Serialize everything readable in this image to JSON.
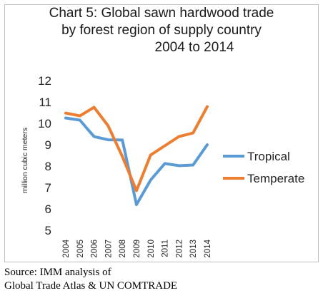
{
  "chart_data": {
    "type": "line",
    "title_lines": [
      "Chart 5: Global sawn hardwood trade",
      "by forest region of supply country",
      "2004 to 2014"
    ],
    "xlabel": "",
    "ylabel": "million cubic meters",
    "categories": [
      "2004",
      "2005",
      "2006",
      "2007",
      "2008",
      "2009",
      "2010",
      "2011",
      "2012",
      "2013",
      "2014"
    ],
    "ylim": [
      5,
      12
    ],
    "yticks": [
      "5",
      "6",
      "7",
      "8",
      "9",
      "10",
      "11",
      "12"
    ],
    "grid": false,
    "legend_position": "right",
    "series": [
      {
        "name": "Tropical",
        "color": "#5b9bd5",
        "values": [
          10.25,
          10.15,
          9.38,
          9.23,
          9.22,
          6.2,
          7.35,
          8.12,
          8.02,
          8.05,
          9.0
        ]
      },
      {
        "name": "Temperate",
        "color": "#ed7d31",
        "values": [
          10.48,
          10.35,
          10.75,
          9.88,
          8.45,
          6.85,
          8.52,
          8.95,
          9.38,
          9.55,
          10.78
        ]
      }
    ]
  },
  "source": {
    "lines": [
      "Source: IMM analysis of",
      "Global Trade Atlas & UN COMTRADE"
    ]
  }
}
